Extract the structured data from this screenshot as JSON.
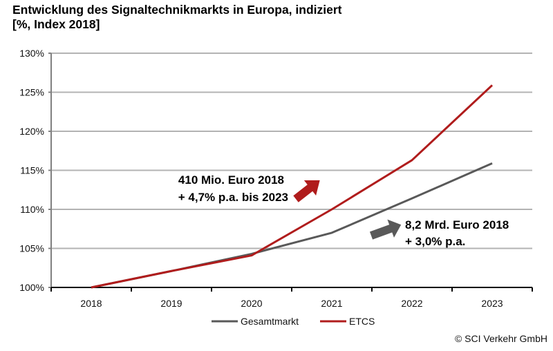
{
  "chart_data": {
    "type": "line",
    "title": "Entwicklung des Signaltechnikmarkts  in Europa, indiziert",
    "subtitle": "[%, Index 2018]",
    "xlabel": "",
    "ylabel": "",
    "categories": [
      "2018",
      "2019",
      "2020",
      "2021",
      "2022",
      "2023"
    ],
    "ylim": [
      100,
      130
    ],
    "yticks": [
      100,
      105,
      110,
      115,
      120,
      125,
      130
    ],
    "ytick_labels": [
      "100%",
      "105%",
      "110%",
      "115%",
      "120%",
      "125%",
      "130%"
    ],
    "grid": true,
    "series": [
      {
        "name": "Gesamtmarkt",
        "color": "#595959",
        "values": [
          100,
          102.1,
          104.3,
          107.0,
          111.4,
          115.9
        ]
      },
      {
        "name": "ETCS",
        "color": "#b01c1c",
        "values": [
          100,
          102.1,
          104.1,
          110.0,
          116.3,
          125.9
        ]
      }
    ],
    "legend_position": "bottom",
    "annotations": [
      {
        "lines": [
          "410 Mio. Euro 2018",
          "+ 4,7% p.a. bis 2023"
        ],
        "arrow_color": "#b01c1c",
        "series": "ETCS"
      },
      {
        "lines": [
          "8,2 Mrd. Euro 2018",
          "+ 3,0% p.a."
        ],
        "arrow_color": "#595959",
        "series": "Gesamtmarkt"
      }
    ]
  },
  "footer": {
    "copyright": "© SCI Verkehr GmbH"
  }
}
